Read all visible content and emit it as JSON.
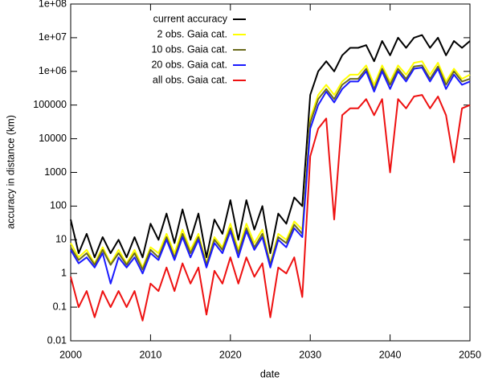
{
  "chart_data": {
    "type": "line",
    "xlabel": "date",
    "ylabel": "accuracy in distance (km)",
    "log_y": true,
    "grid": false,
    "legend": "upper left",
    "xlim": [
      2000,
      2050
    ],
    "xticks": [
      2000,
      2010,
      2020,
      2030,
      2040,
      2050
    ],
    "ylim": [
      0.01,
      100000000
    ],
    "yticks": [
      {
        "value": 100000000,
        "label": "1e+08"
      },
      {
        "value": 10000000,
        "label": "1e+07"
      },
      {
        "value": 1000000,
        "label": "1e+06"
      },
      100000,
      10000,
      1000,
      100,
      10,
      1,
      0.1,
      0.01
    ],
    "x": [
      2000,
      2001,
      2002,
      2003,
      2004,
      2005,
      2006,
      2007,
      2008,
      2009,
      2010,
      2011,
      2012,
      2013,
      2014,
      2015,
      2016,
      2017,
      2018,
      2019,
      2020,
      2021,
      2022,
      2023,
      2024,
      2025,
      2026,
      2027,
      2028,
      2029,
      2030,
      2031,
      2032,
      2033,
      2034,
      2035,
      2036,
      2037,
      2038,
      2039,
      2040,
      2041,
      2042,
      2043,
      2044,
      2045,
      2046,
      2047,
      2048,
      2049,
      2050
    ],
    "series": [
      {
        "name": "current accuracy",
        "color": "#000000",
        "values": [
          40,
          4,
          15,
          3,
          12,
          4,
          10,
          3,
          12,
          3,
          30,
          10,
          60,
          8,
          80,
          10,
          60,
          3,
          40,
          15,
          150,
          10,
          150,
          20,
          100,
          4,
          60,
          30,
          180,
          100,
          200000,
          1000000,
          2000000,
          1000000,
          3000000,
          5000000,
          5000000,
          6000000,
          2000000,
          8000000,
          3000000,
          10000000,
          5000000,
          10000000,
          12000000,
          5000000,
          10000000,
          3000000,
          8000000,
          5000000,
          8000000
        ]
      },
      {
        "name": "2 obs. Gaia cat.",
        "color": "#ffff00",
        "values": [
          8,
          3,
          5,
          2,
          6,
          2,
          5,
          2,
          5,
          1.5,
          6,
          4,
          15,
          4,
          20,
          5,
          15,
          2,
          12,
          6,
          30,
          5,
          30,
          8,
          20,
          2,
          15,
          10,
          35,
          20,
          40000,
          200000,
          400000,
          200000,
          500000,
          800000,
          800000,
          1500000,
          400000,
          1500000,
          500000,
          1500000,
          800000,
          1800000,
          2000000,
          800000,
          1800000,
          500000,
          1200000,
          600000,
          800000
        ]
      },
      {
        "name": "10 obs. Gaia cat.",
        "color": "#6b6b1e",
        "values": [
          6,
          2.5,
          4,
          1.8,
          5,
          1.8,
          4,
          1.8,
          4,
          1.3,
          5,
          3,
          12,
          3,
          15,
          4,
          12,
          1.8,
          10,
          5,
          22,
          4,
          22,
          6,
          15,
          1.8,
          12,
          8,
          28,
          15,
          30000,
          150000,
          300000,
          150000,
          400000,
          600000,
          600000,
          1200000,
          300000,
          1200000,
          400000,
          1200000,
          600000,
          1400000,
          1500000,
          600000,
          1400000,
          400000,
          1000000,
          500000,
          600000
        ]
      },
      {
        "name": "20 obs. Gaia cat.",
        "color": "#1a1aff",
        "values": [
          5,
          2,
          3,
          1.5,
          4,
          0.5,
          3,
          1.5,
          3,
          1,
          4,
          2.5,
          10,
          2.5,
          12,
          3,
          10,
          1.5,
          8,
          4,
          18,
          3,
          18,
          5,
          12,
          1.5,
          10,
          6,
          22,
          12,
          20000,
          100000,
          250000,
          120000,
          300000,
          500000,
          500000,
          1000000,
          250000,
          1000000,
          300000,
          1000000,
          500000,
          1200000,
          1300000,
          500000,
          1200000,
          300000,
          800000,
          400000,
          500000
        ]
      },
      {
        "name": "all obs. Gaia cat.",
        "color": "#ee1111",
        "values": [
          0.8,
          0.1,
          0.3,
          0.05,
          0.3,
          0.1,
          0.3,
          0.1,
          0.3,
          0.04,
          0.5,
          0.3,
          1.5,
          0.3,
          2,
          0.5,
          1.5,
          0.06,
          1.2,
          0.5,
          3,
          0.5,
          3,
          0.8,
          2,
          0.05,
          1.5,
          1,
          3,
          0.2,
          3000,
          20000,
          40000,
          40,
          50000,
          80000,
          80000,
          150000,
          50000,
          150000,
          1000,
          150000,
          80000,
          180000,
          200000,
          80000,
          180000,
          50000,
          2000,
          80000,
          100000
        ]
      }
    ]
  }
}
